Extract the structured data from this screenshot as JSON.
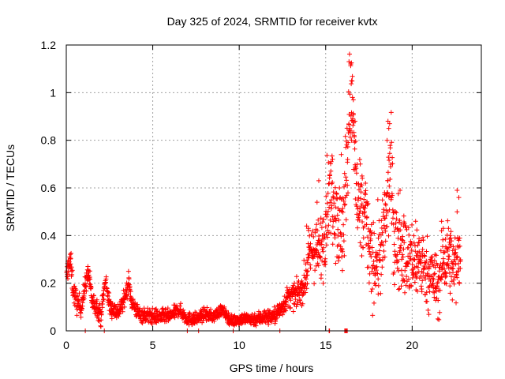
{
  "colors": {
    "series": "#ff0000",
    "grid": "#a0a0a0",
    "axis": "#000000",
    "background": "#ffffff"
  },
  "chart_data": {
    "type": "scatter",
    "marker": "plus",
    "title": "Day 325 of 2024, SRMTID for receiver kvtx",
    "xlabel": "GPS time / hours",
    "ylabel": "SRMTID / TECUs",
    "xlim": [
      0,
      24
    ],
    "ylim": [
      0,
      1.2
    ],
    "xticks": [
      0,
      5,
      10,
      15,
      20
    ],
    "xtick_labels": [
      "0",
      "5",
      "10",
      "15",
      "20"
    ],
    "yticks": [
      0,
      0.2,
      0.4,
      0.6,
      0.8,
      1.0,
      1.2
    ],
    "ytick_labels": [
      "0",
      "0.2",
      "0.4",
      "0.6",
      "0.8",
      "1",
      "1.2"
    ],
    "grid": true,
    "series": [
      {
        "name": "SRMTID",
        "anchor_points": [
          [
            0.0,
            0.2
          ],
          [
            0.1,
            0.27
          ],
          [
            0.25,
            0.29
          ],
          [
            0.4,
            0.17
          ],
          [
            0.6,
            0.12
          ],
          [
            0.8,
            0.1
          ],
          [
            1.0,
            0.14
          ],
          [
            1.1,
            0.2
          ],
          [
            1.3,
            0.24
          ],
          [
            1.5,
            0.12
          ],
          [
            1.8,
            0.1
          ],
          [
            2.0,
            0.06
          ],
          [
            2.2,
            0.18
          ],
          [
            2.3,
            0.21
          ],
          [
            2.5,
            0.1
          ],
          [
            3.0,
            0.08
          ],
          [
            3.3,
            0.12
          ],
          [
            3.6,
            0.2
          ],
          [
            3.8,
            0.12
          ],
          [
            4.2,
            0.07
          ],
          [
            5.0,
            0.06
          ],
          [
            6.0,
            0.06
          ],
          [
            6.5,
            0.09
          ],
          [
            7.0,
            0.05
          ],
          [
            7.5,
            0.05
          ],
          [
            8.0,
            0.07
          ],
          [
            8.5,
            0.06
          ],
          [
            9.0,
            0.09
          ],
          [
            9.3,
            0.06
          ],
          [
            9.6,
            0.04
          ],
          [
            10.0,
            0.05
          ],
          [
            10.5,
            0.05
          ],
          [
            11.0,
            0.05
          ],
          [
            11.5,
            0.06
          ],
          [
            12.0,
            0.06
          ],
          [
            12.4,
            0.09
          ],
          [
            12.8,
            0.14
          ],
          [
            13.3,
            0.15
          ],
          [
            13.8,
            0.2
          ],
          [
            14.0,
            0.3
          ],
          [
            14.3,
            0.35
          ],
          [
            14.6,
            0.32
          ],
          [
            14.9,
            0.4
          ],
          [
            15.1,
            0.55
          ],
          [
            15.4,
            0.58
          ],
          [
            15.7,
            0.48
          ],
          [
            15.9,
            0.38
          ],
          [
            16.1,
            0.55
          ],
          [
            16.3,
            0.8
          ],
          [
            16.45,
            1.05
          ],
          [
            16.55,
            0.9
          ],
          [
            16.8,
            0.55
          ],
          [
            17.0,
            0.45
          ],
          [
            17.3,
            0.5
          ],
          [
            17.6,
            0.28
          ],
          [
            18.0,
            0.3
          ],
          [
            18.3,
            0.35
          ],
          [
            18.6,
            0.55
          ],
          [
            18.75,
            0.7
          ],
          [
            19.0,
            0.35
          ],
          [
            19.3,
            0.4
          ],
          [
            19.6,
            0.3
          ],
          [
            20.0,
            0.28
          ],
          [
            20.4,
            0.3
          ],
          [
            20.8,
            0.25
          ],
          [
            21.2,
            0.22
          ],
          [
            21.5,
            0.18
          ],
          [
            21.8,
            0.3
          ],
          [
            22.1,
            0.32
          ],
          [
            22.4,
            0.25
          ],
          [
            22.8,
            0.35
          ]
        ],
        "spread": [
          [
            0,
            0.05
          ],
          [
            1,
            0.04
          ],
          [
            4,
            0.03
          ],
          [
            9.5,
            0.02
          ],
          [
            12,
            0.03
          ],
          [
            13.5,
            0.05
          ],
          [
            14.5,
            0.12
          ],
          [
            15.5,
            0.18
          ],
          [
            16.5,
            0.22
          ],
          [
            17.5,
            0.15
          ],
          [
            19,
            0.18
          ],
          [
            21,
            0.12
          ],
          [
            23,
            0.14
          ]
        ],
        "extremes": [
          [
            16.35,
            1.13
          ],
          [
            16.45,
            1.12
          ],
          [
            16.5,
            1.05
          ],
          [
            16.55,
            0.98
          ],
          [
            16.6,
            0.97
          ],
          [
            16.7,
            0.88
          ],
          [
            16.4,
            0.85
          ],
          [
            16.5,
            0.8
          ],
          [
            18.6,
            0.88
          ],
          [
            18.7,
            0.87
          ],
          [
            18.65,
            0.85
          ],
          [
            18.55,
            0.8
          ],
          [
            19.3,
            0.59
          ],
          [
            17.0,
            0.7
          ],
          [
            17.1,
            0.65
          ],
          [
            17.3,
            0.62
          ],
          [
            15.9,
            0.74
          ],
          [
            15.4,
            0.72
          ],
          [
            14.6,
            0.63
          ],
          [
            21.7,
            0.46
          ],
          [
            21.8,
            0.43
          ],
          [
            22.1,
            0.43
          ],
          [
            22.2,
            0.4
          ],
          [
            22.6,
            0.59
          ],
          [
            22.7,
            0.56
          ],
          [
            22.6,
            0.5
          ],
          [
            0.2,
            0.31
          ],
          [
            1.25,
            0.27
          ],
          [
            3.6,
            0.25
          ],
          [
            13.9,
            0.44
          ],
          [
            14.0,
            0.43
          ],
          [
            14.5,
            0.54
          ],
          [
            18.4,
            0.58
          ],
          [
            19.5,
            0.44
          ],
          [
            20.4,
            0.37
          ],
          [
            20.2,
            0.46
          ]
        ],
        "zero_points": [
          1.1,
          2.2,
          7.0,
          7.65,
          9.65,
          12.35,
          15.2,
          15.22,
          16.1,
          16.15,
          16.2,
          16.25
        ],
        "n_points": 2000
      }
    ]
  }
}
